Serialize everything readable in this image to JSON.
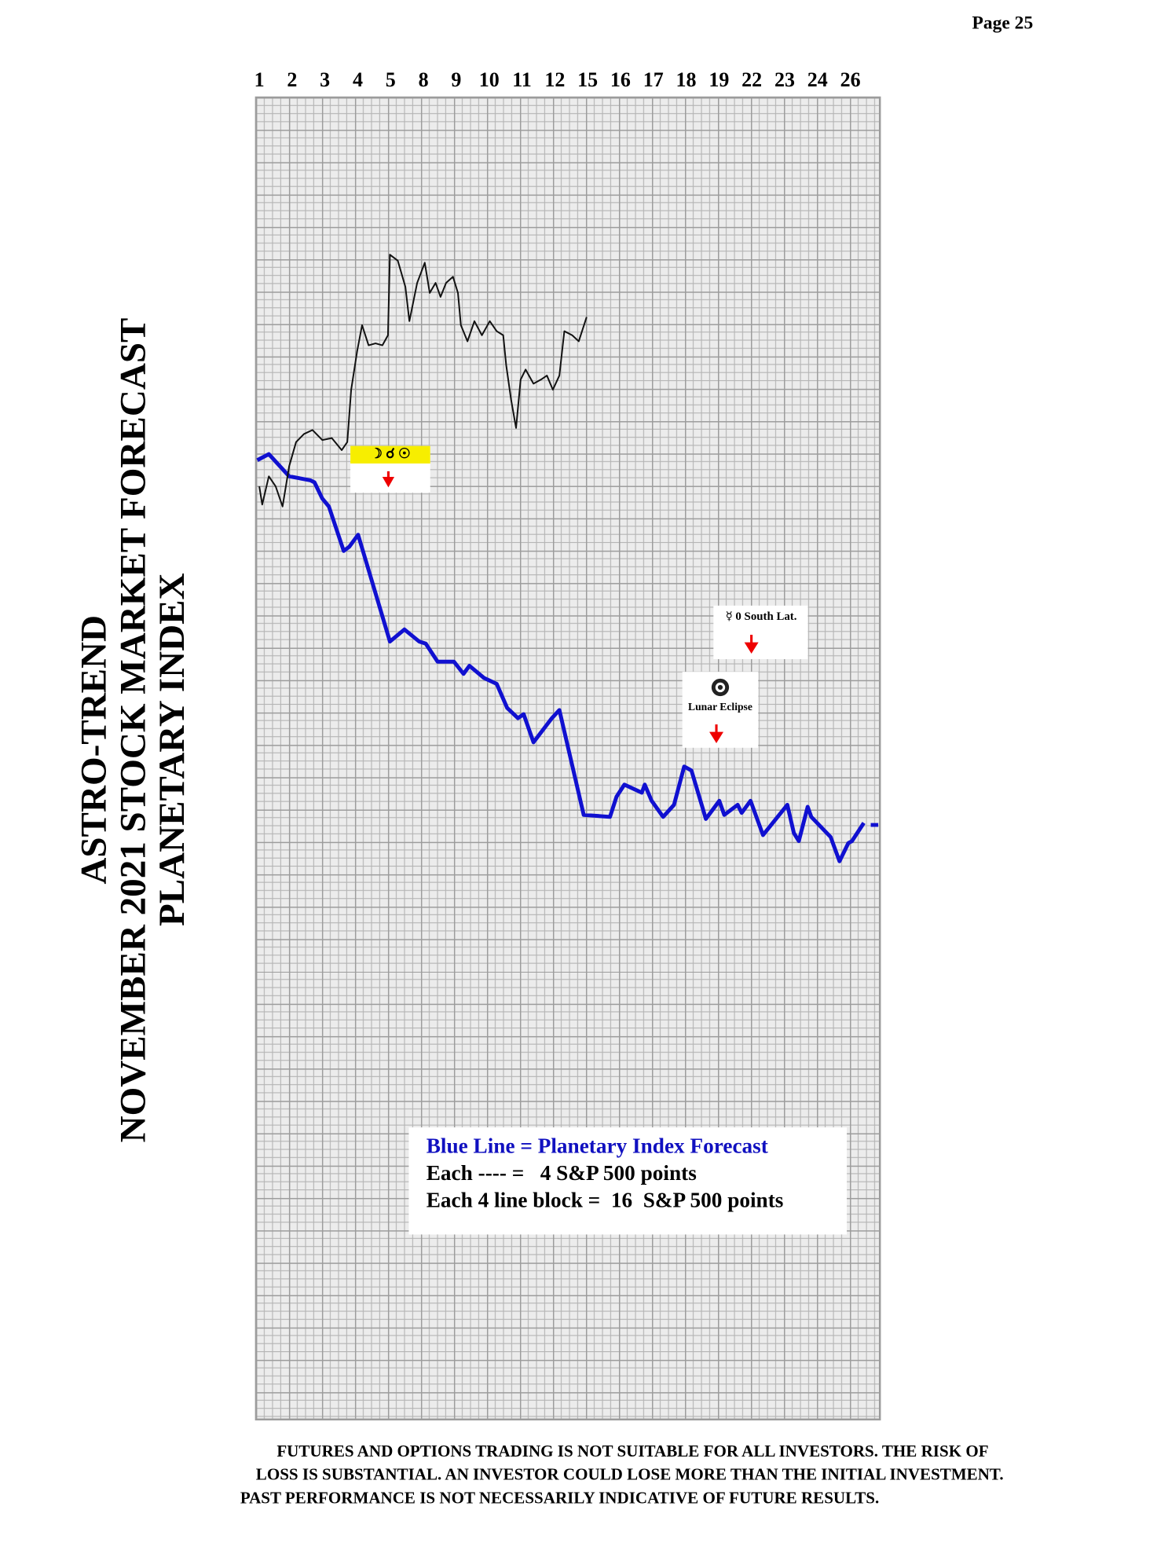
{
  "page": "Page 25",
  "title_lines": [
    "ASTRO-TREND",
    "NOVEMBER 2021 STOCK MARKET FORECAST",
    "PLANETARY INDEX"
  ],
  "annotations": [
    "☽ ☌ ☉",
    "☿ 0 South Lat.",
    "Lunar Eclipse"
  ],
  "note": [
    "Blue Line = Planetary Index Forecast",
    "Each ---- =   4 S&P 500 points",
    "Each 4 line block =  16  S&P 500 points"
  ],
  "footer": [
    "FUTURES AND OPTIONS TRADING IS NOT SUITABLE FOR ALL INVESTORS.  THE RISK OF",
    "LOSS IS SUBSTANTIAL.  AN INVESTOR COULD LOSE MORE THAN THE INITIAL INVESTMENT.",
    "PAST PERFORMANCE IS NOT NECESSARILY INDICATIVE OF FUTURE RESULTS."
  ],
  "chart_data": {
    "type": "line",
    "xlim": [
      -0.1,
      18.9
    ],
    "xticks": [
      {
        "value": 0,
        "label": "1"
      },
      {
        "value": 1,
        "label": "2"
      },
      {
        "value": 2,
        "label": "3"
      },
      {
        "value": 3,
        "label": "4"
      },
      {
        "value": 4,
        "label": "5"
      },
      {
        "value": 5,
        "label": "8"
      },
      {
        "value": 6,
        "label": "9"
      },
      {
        "value": 7,
        "label": "10"
      },
      {
        "value": 8,
        "label": "11"
      },
      {
        "value": 9,
        "label": "12"
      },
      {
        "value": 10,
        "label": "15"
      },
      {
        "value": 11,
        "label": "16"
      },
      {
        "value": 12,
        "label": "17"
      },
      {
        "value": 13,
        "label": "18"
      },
      {
        "value": 14,
        "label": "19"
      },
      {
        "value": 15,
        "label": "22"
      },
      {
        "value": 16,
        "label": "23"
      },
      {
        "value": 17,
        "label": "24"
      },
      {
        "value": 18,
        "label": "26"
      }
    ],
    "ylim": [
      0,
      656
    ],
    "series": [
      {
        "color": "#1010d0",
        "width": 4,
        "x": [
          -0.06,
          0.29,
          0.91,
          1.56,
          1.68,
          1.92,
          2.12,
          2.57,
          2.74,
          3.01,
          3.98,
          4.42,
          4.87,
          5.07,
          5.43,
          5.93,
          6.22,
          6.4,
          6.84,
          7.23,
          7.55,
          7.88,
          8.05,
          8.35,
          8.91,
          9.14,
          9.88,
          10.68,
          10.88,
          11.12,
          11.65,
          11.74,
          11.95,
          12.3,
          12.63,
          12.94,
          13.16,
          13.6,
          14.01,
          14.16,
          14.57,
          14.69,
          14.96,
          15.34,
          16.08,
          16.28,
          16.43,
          16.7,
          16.81,
          17.4,
          17.67,
          17.94,
          18.05,
          18.41,
          null,
          18.62,
          18.85
        ],
        "values": [
          476,
          479,
          468,
          466,
          465,
          457,
          453,
          431,
          433,
          439,
          386,
          392,
          386,
          385,
          376,
          376,
          370,
          374,
          368,
          365,
          353,
          348,
          350,
          336,
          348,
          352,
          300,
          299,
          309,
          315,
          311,
          315,
          307,
          299,
          305,
          324,
          322,
          298,
          307,
          300,
          305,
          301,
          307,
          290,
          305,
          291,
          287,
          304,
          299,
          289,
          277,
          286,
          287,
          296,
          null,
          295,
          295
        ]
      },
      {
        "color": "#111111",
        "width": 1.6,
        "x": [
          0,
          0.09,
          0.29,
          0.5,
          0.71,
          0.91,
          1.12,
          1.36,
          1.62,
          1.92,
          2.21,
          2.51,
          2.68,
          2.8,
          2.98,
          3.13,
          3.33,
          3.54,
          3.75,
          3.92,
          3.98,
          4.22,
          4.45,
          4.57,
          4.81,
          5.04,
          5.19,
          5.37,
          5.52,
          5.69,
          5.9,
          6.05,
          6.14,
          6.34,
          6.55,
          6.78,
          7.02,
          7.23,
          7.43,
          7.52,
          7.67,
          7.82,
          7.96,
          8.11,
          8.35,
          8.58,
          8.76,
          8.94,
          9.14,
          9.29,
          9.53,
          9.73,
          9.97
        ],
        "values": [
          463,
          454,
          468,
          463,
          453,
          473,
          485,
          489,
          491,
          486,
          487,
          481,
          485,
          511,
          530,
          543,
          533,
          534,
          533,
          538,
          578,
          575,
          562,
          545,
          564,
          574,
          559,
          564,
          557,
          564,
          567,
          559,
          543,
          535,
          545,
          538,
          545,
          540,
          538,
          523,
          506,
          492,
          516,
          521,
          514,
          516,
          518,
          511,
          518,
          540,
          538,
          535,
          547
        ]
      }
    ]
  }
}
